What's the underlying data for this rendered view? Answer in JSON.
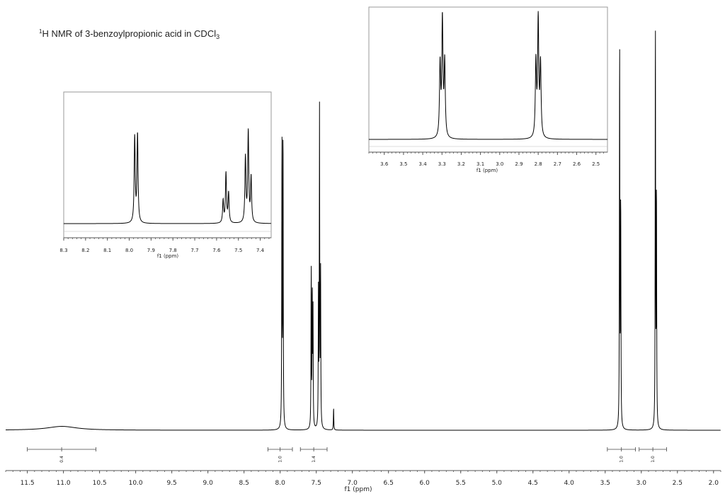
{
  "chart_data": [
    {
      "type": "line",
      "title": {
        "sup": "1",
        "main": "H NMR of 3-benzoylpropionic acid in CDCl",
        "sub": "3"
      },
      "xlabel": "f1 (ppm)",
      "xlim": [
        11.8,
        1.9
      ],
      "x_reversed": true,
      "xticks": [
        "11.5",
        "11.0",
        "10.5",
        "10.0",
        "9.5",
        "9.0",
        "8.5",
        "8.0",
        "7.5",
        "7.0",
        "6.5",
        "6.0",
        "5.5",
        "5.0",
        "4.5",
        "4.0",
        "3.5",
        "3.0",
        "2.5",
        "2.0"
      ],
      "peaks": [
        {
          "shift": 11.02,
          "height": 0.012,
          "width": 0.25
        },
        {
          "shift": 7.975,
          "height": 0.92
        },
        {
          "shift": 7.96,
          "height": 0.94
        },
        {
          "shift": 7.57,
          "height": 0.5
        },
        {
          "shift": 7.555,
          "height": 0.42
        },
        {
          "shift": 7.545,
          "height": 0.35
        },
        {
          "shift": 7.47,
          "height": 0.42
        },
        {
          "shift": 7.455,
          "height": 0.98
        },
        {
          "shift": 7.44,
          "height": 0.48
        },
        {
          "shift": 7.26,
          "height": 0.07
        },
        {
          "shift": 3.3,
          "height": 1.22
        },
        {
          "shift": 3.285,
          "height": 0.72
        },
        {
          "shift": 2.805,
          "height": 1.28
        },
        {
          "shift": 2.79,
          "height": 0.75
        }
      ],
      "integrals": [
        {
          "from": 11.5,
          "to": 10.55,
          "value": "0.4"
        },
        {
          "from": 8.17,
          "to": 7.83,
          "value": "1.0"
        },
        {
          "from": 7.72,
          "to": 7.35,
          "value": "1.4"
        },
        {
          "from": 3.47,
          "to": 3.08,
          "value": "1.0"
        },
        {
          "from": 3.03,
          "to": 2.65,
          "value": "1.0"
        }
      ]
    },
    {
      "type": "line",
      "xlabel": "f1 (ppm)",
      "xlim": [
        8.3,
        7.35
      ],
      "x_reversed": true,
      "xticks": [
        "8.3",
        "8.2",
        "8.1",
        "8.0",
        "7.9",
        "7.8",
        "7.7",
        "7.6",
        "7.5",
        "7.4"
      ],
      "peaks": [
        {
          "shift": 7.975,
          "height": 0.95
        },
        {
          "shift": 7.962,
          "height": 0.98
        },
        {
          "shift": 7.57,
          "height": 0.25
        },
        {
          "shift": 7.557,
          "height": 0.55
        },
        {
          "shift": 7.545,
          "height": 0.33
        },
        {
          "shift": 7.468,
          "height": 0.72
        },
        {
          "shift": 7.455,
          "height": 1.0
        },
        {
          "shift": 7.442,
          "height": 0.5
        }
      ]
    },
    {
      "type": "line",
      "xlabel": "f1 (ppm)",
      "xlim": [
        3.68,
        2.44
      ],
      "x_reversed": true,
      "xticks": [
        "3.6",
        "3.5",
        "3.4",
        "3.3",
        "3.2",
        "3.1",
        "3.0",
        "2.9",
        "2.8",
        "2.7",
        "2.6",
        "2.5"
      ],
      "peaks": [
        {
          "shift": 3.31,
          "height": 0.62
        },
        {
          "shift": 3.298,
          "height": 1.0
        },
        {
          "shift": 3.286,
          "height": 0.64
        },
        {
          "shift": 2.812,
          "height": 0.64
        },
        {
          "shift": 2.8,
          "height": 1.0
        },
        {
          "shift": 2.788,
          "height": 0.62
        }
      ]
    }
  ]
}
